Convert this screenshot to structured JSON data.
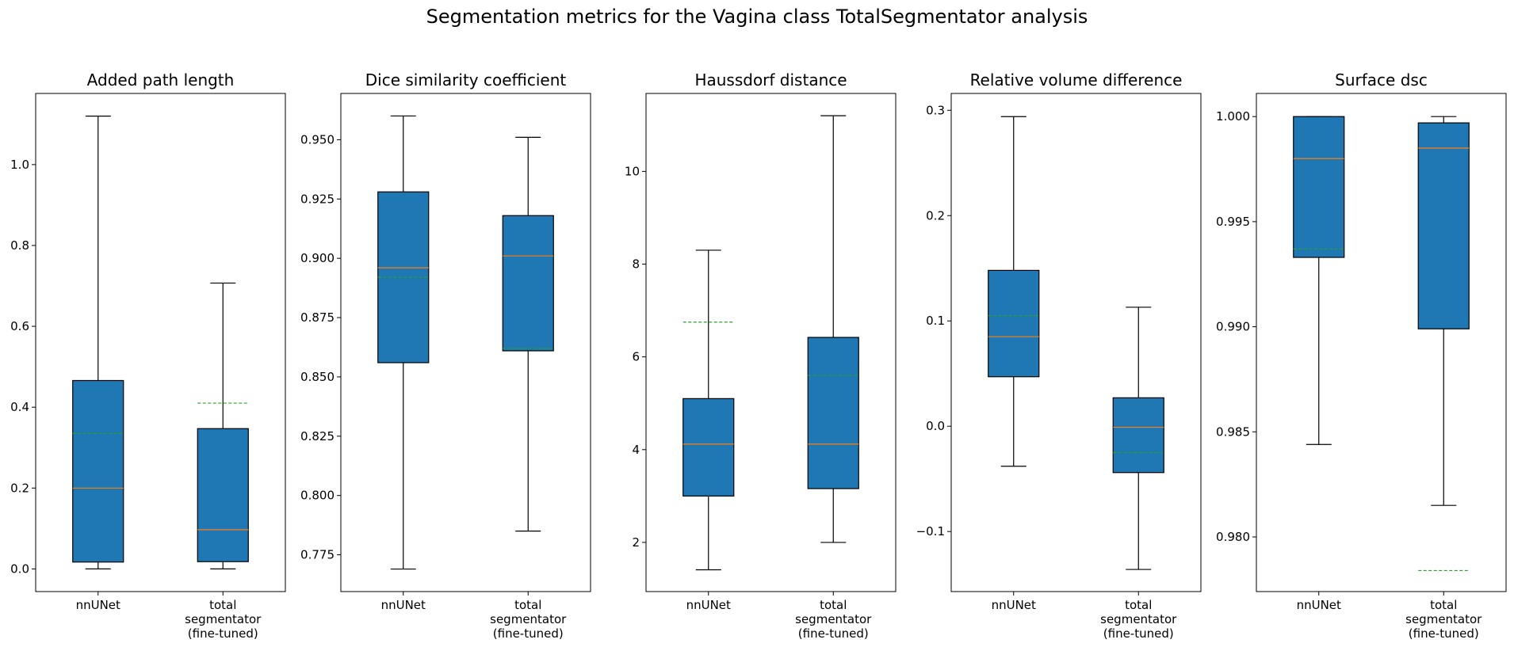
{
  "figure": {
    "title": "Segmentation metrics for the Vagina class TotalSegmentator analysis"
  },
  "chart_data": [
    {
      "type": "box",
      "title": "Added path length",
      "categories": [
        "nnUNet",
        "total\nsegmentator\n(fine-tuned)"
      ],
      "ylim": [
        -0.056,
        1.176
      ],
      "yticks": [
        0.0,
        0.2,
        0.4,
        0.6,
        0.8,
        1.0
      ],
      "tick_labels": [
        "0.0",
        "0.2",
        "0.4",
        "0.6",
        "0.8",
        "1.0"
      ],
      "boxes": [
        {
          "whislo": 0.0,
          "q1": 0.017,
          "med": 0.2,
          "q3": 0.466,
          "whishi": 1.12,
          "mean": 0.335
        },
        {
          "whislo": 0.0,
          "q1": 0.018,
          "med": 0.097,
          "q3": 0.347,
          "whishi": 0.707,
          "mean": 0.41
        }
      ]
    },
    {
      "type": "box",
      "title": "Dice similarity coefficient",
      "categories": [
        "nnUNet",
        "total\nsegmentator\n(fine-tuned)"
      ],
      "ylim": [
        0.7595,
        0.9695
      ],
      "yticks": [
        0.775,
        0.8,
        0.825,
        0.85,
        0.875,
        0.9,
        0.925,
        0.95
      ],
      "tick_labels": [
        "0.775",
        "0.800",
        "0.825",
        "0.850",
        "0.875",
        "0.900",
        "0.925",
        "0.950"
      ],
      "boxes": [
        {
          "whislo": 0.769,
          "q1": 0.856,
          "med": 0.896,
          "q3": 0.928,
          "whishi": 0.96,
          "mean": 0.892
        },
        {
          "whislo": 0.785,
          "q1": 0.861,
          "med": 0.901,
          "q3": 0.918,
          "whishi": 0.951,
          "mean": 0.862
        }
      ]
    },
    {
      "type": "box",
      "title": "Haussdorf distance",
      "categories": [
        "nnUNet",
        "total\nsegmentator\n(fine-tuned)"
      ],
      "ylim": [
        0.94,
        11.68
      ],
      "yticks": [
        2,
        4,
        6,
        8,
        10
      ],
      "tick_labels": [
        "2",
        "4",
        "6",
        "8",
        "10"
      ],
      "boxes": [
        {
          "whislo": 1.41,
          "q1": 3.0,
          "med": 4.12,
          "q3": 5.1,
          "whishi": 8.3,
          "mean": 6.75
        },
        {
          "whislo": 2.0,
          "q1": 3.16,
          "med": 4.12,
          "q3": 6.42,
          "whishi": 11.2,
          "mean": 5.6
        }
      ]
    },
    {
      "type": "box",
      "title": "Relative volume difference",
      "categories": [
        "nnUNet",
        "total\nsegmentator\n(fine-tuned)"
      ],
      "ylim": [
        -0.157,
        0.316
      ],
      "yticks": [
        -0.1,
        0.0,
        0.1,
        0.2,
        0.3
      ],
      "tick_labels": [
        "−0.1",
        "0.0",
        "0.1",
        "0.2",
        "0.3"
      ],
      "boxes": [
        {
          "whislo": -0.038,
          "q1": 0.047,
          "med": 0.085,
          "q3": 0.148,
          "whishi": 0.294,
          "mean": 0.105
        },
        {
          "whislo": -0.136,
          "q1": -0.044,
          "med": -0.001,
          "q3": 0.027,
          "whishi": 0.113,
          "mean": -0.025
        }
      ]
    },
    {
      "type": "box",
      "title": "Surface dsc",
      "categories": [
        "nnUNet",
        "total\nsegmentator\n(fine-tuned)"
      ],
      "ylim": [
        0.9774,
        1.0011
      ],
      "yticks": [
        0.98,
        0.985,
        0.99,
        0.995,
        1.0
      ],
      "tick_labels": [
        "0.980",
        "0.985",
        "0.990",
        "0.995",
        "1.000"
      ],
      "boxes": [
        {
          "whislo": 0.9844,
          "q1": 0.9933,
          "med": 0.998,
          "q3": 1.0,
          "whishi": 1.0,
          "mean": 0.9937
        },
        {
          "whislo": 0.9815,
          "q1": 0.9899,
          "med": 0.9985,
          "q3": 0.9997,
          "whishi": 1.0,
          "mean": 0.9784
        }
      ]
    }
  ],
  "colors": {
    "box_fill": "#1f77b4",
    "median": "#ff7f0e",
    "mean": "#2ca02c",
    "line": "#000000"
  }
}
